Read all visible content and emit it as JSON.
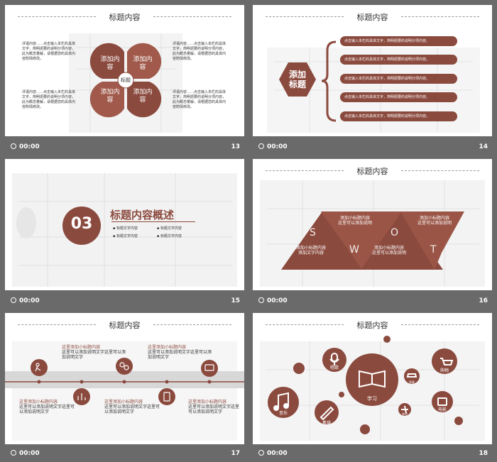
{
  "footer": {
    "time": "00:00"
  },
  "slides": {
    "s13": {
      "number": "13",
      "title": "标题内容",
      "petals": [
        "添加内容",
        "添加内容",
        "添加内容",
        "添加内容"
      ],
      "center": "标题",
      "texts": [
        "评语内容……点击输入本栏的具体文字，简明扼要的说明分项内容，此为概念量解，请根据您的具体内容酌情修改。",
        "评语内容……点击输入本栏的具体文字，简明扼要的说明分项内容，此为概念量解，请根据您的具体内容酌情修改。",
        "评语内容……点击输入本栏的具体文字，简明扼要的说明分项内容，此为概念量解，请根据您的具体内容酌情修改。",
        "评语内容……点击输入本栏的具体文字，简明扼要的说明分项内容，此为概念量解，请根据您的具体内容酌情修改。"
      ]
    },
    "s14": {
      "number": "14",
      "title": "标题内容",
      "hex": "添加标题",
      "items": [
        "点击输入本栏的具体文字，简明扼要的说明分项内容。",
        "点击输入本栏的具体文字，简明扼要的说明分项内容。",
        "点击输入本栏的具体文字，简明扼要的说明分项内容。",
        "点击输入本栏的具体文字，简明扼要的说明分项内容。",
        "点击输入本栏的具体文字，简明扼要的说明分项内容。"
      ]
    },
    "s15": {
      "number": "15",
      "section": "03",
      "heading": "标题内容概述",
      "bullets": [
        "标题文字内容",
        "标题文字内容",
        "标题文字内容",
        "标题文字内容"
      ]
    },
    "s16": {
      "number": "16",
      "title": "标题内容",
      "letters": [
        "S",
        "W",
        "O",
        "T"
      ],
      "labels": [
        "添加小标题内容",
        "添加小标题内容",
        "添加小标题内容",
        "添加小标题内容"
      ],
      "subs": [
        "这里可以添加说明",
        "这里可以添加说明",
        "这里可以添加说明",
        "添加文字内容"
      ]
    },
    "s17": {
      "number": "17",
      "title": "标题内容",
      "top_labels": [
        "这里添加小标题内容",
        "这里添加小标题内容"
      ],
      "bottom_labels": [
        "这里添加小标题内容",
        "这里添加小标题内容",
        "这里添加小标题内容"
      ],
      "desc": "这里可以添加说明文字这里可以添加说明文字"
    },
    "s18": {
      "number": "18",
      "title": "标题内容",
      "center": "学习",
      "labels": {
        "music": "音乐",
        "mic": "唱歌",
        "car": "驾驶",
        "shop": "购物",
        "draw": "素描",
        "plane": "旅游",
        "movie": "电影"
      }
    }
  },
  "colors": {
    "accent": "#8b4a3e",
    "bar": "#4a4a4a"
  }
}
